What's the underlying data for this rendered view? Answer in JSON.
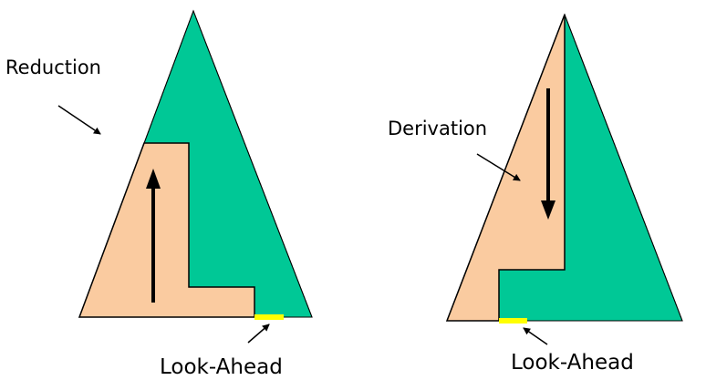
{
  "labels": {
    "reduction": "Reduction",
    "derivation": "Derivation",
    "lookahead_left": "Look-Ahead",
    "lookahead_right": "Look-Ahead"
  },
  "colors": {
    "green": "#00C896",
    "peach": "#FACBA0",
    "lookahead": "#FFFF00",
    "outline": "#000000"
  }
}
